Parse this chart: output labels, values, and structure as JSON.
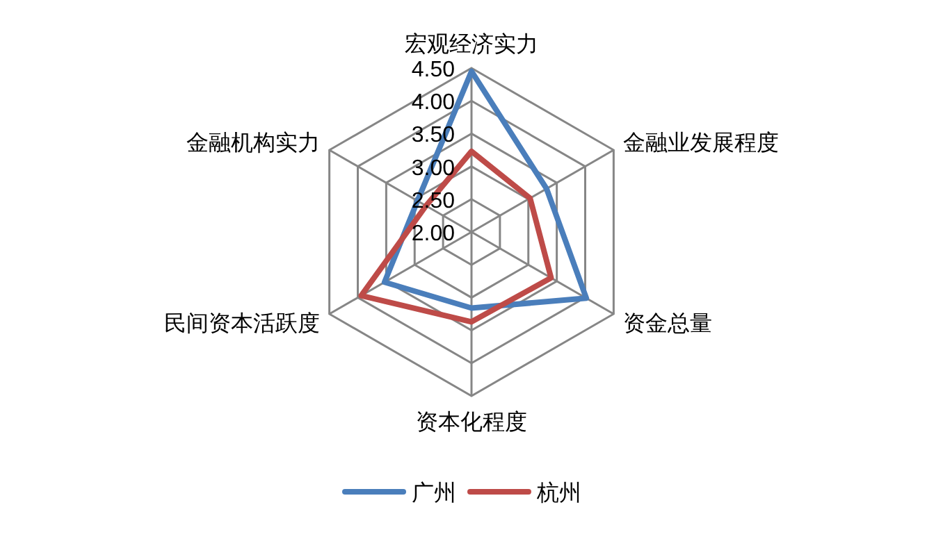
{
  "chart_data": {
    "type": "radar",
    "categories": [
      "宏观经济实力",
      "金融业发展程度",
      "资金总量",
      "资本化程度",
      "民间资本活跃度",
      "金融机构实力"
    ],
    "series": [
      {
        "name": "广州",
        "color": "#4a7ebb",
        "values": [
          4.45,
          3.32,
          4.02,
          3.16,
          3.53,
          2.95
        ]
      },
      {
        "name": "杭州",
        "color": "#be4b48",
        "values": [
          3.23,
          3.03,
          3.4,
          3.37,
          3.94,
          2.8
        ]
      }
    ],
    "ylim": [
      2,
      4.5
    ],
    "yticks": [
      {
        "value": 2,
        "label": "2.00"
      },
      {
        "value": 2.5,
        "label": "2.50"
      },
      {
        "value": 3,
        "label": "3.00"
      },
      {
        "value": 3.5,
        "label": "3.50"
      },
      {
        "value": 4,
        "label": "4.00"
      },
      {
        "value": 4.5,
        "label": "4.50"
      }
    ],
    "grid": true,
    "legend": "bottom"
  }
}
